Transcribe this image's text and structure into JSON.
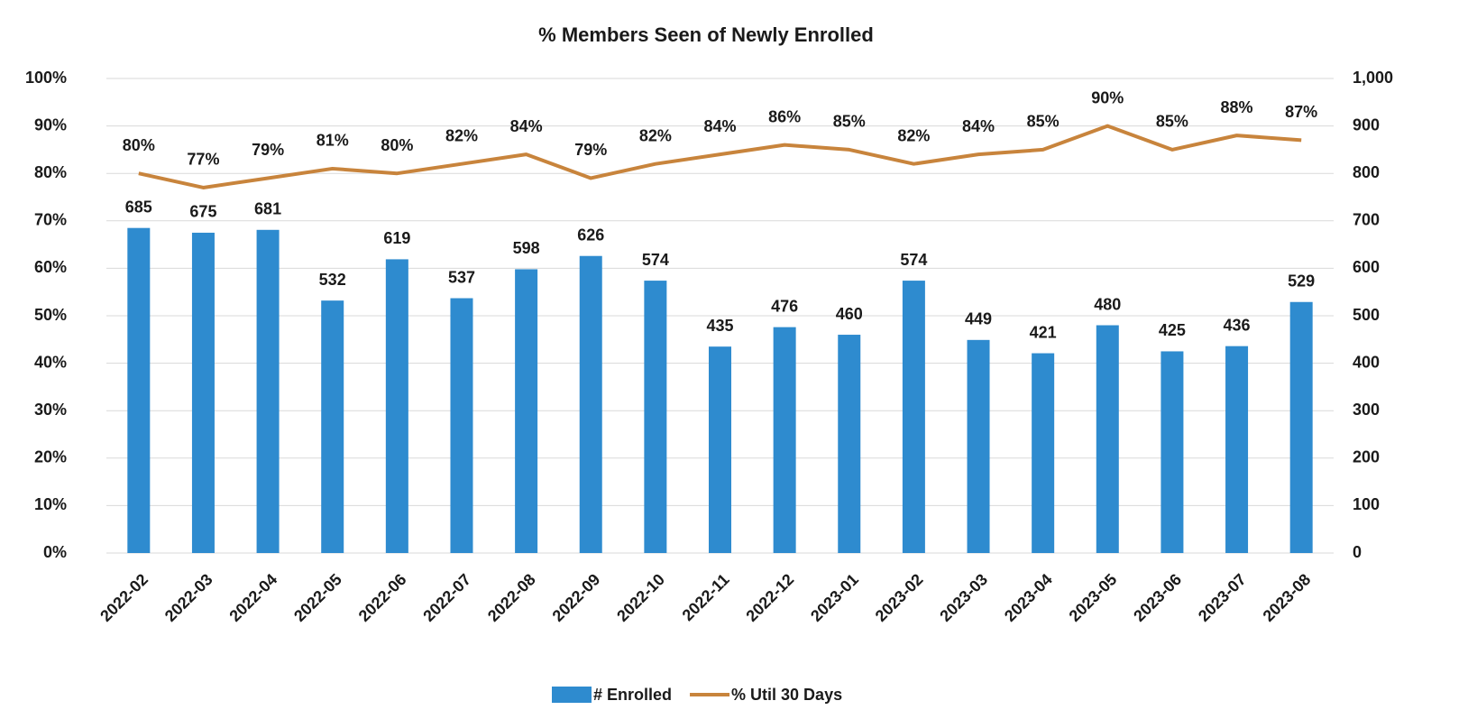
{
  "chart_data": {
    "type": "combo",
    "title": "% Members Seen of Newly Enrolled",
    "categories": [
      "2022-02",
      "2022-03",
      "2022-04",
      "2022-05",
      "2022-06",
      "2022-07",
      "2022-08",
      "2022-09",
      "2022-10",
      "2022-11",
      "2022-12",
      "2023-01",
      "2023-02",
      "2023-03",
      "2023-04",
      "2023-05",
      "2023-06",
      "2023-07",
      "2023-08"
    ],
    "series": [
      {
        "name": "# Enrolled",
        "type": "bar",
        "axis": "y2",
        "color": "#2e8bcf",
        "values": [
          685,
          675,
          681,
          532,
          619,
          537,
          598,
          626,
          574,
          435,
          476,
          460,
          574,
          449,
          421,
          480,
          425,
          436,
          529
        ]
      },
      {
        "name": "% Util 30 Days",
        "type": "line",
        "axis": "y",
        "color": "#c8843c",
        "values": [
          80,
          77,
          79,
          81,
          80,
          82,
          84,
          79,
          82,
          84,
          86,
          85,
          82,
          84,
          85,
          90,
          85,
          88,
          87
        ],
        "value_labels": [
          "80%",
          "77%",
          "79%",
          "81%",
          "80%",
          "82%",
          "84%",
          "79%",
          "82%",
          "84%",
          "86%",
          "85%",
          "82%",
          "84%",
          "85%",
          "90%",
          "85%",
          "88%",
          "87%"
        ]
      }
    ],
    "ylim": [
      0,
      100
    ],
    "yticks": [
      {
        "value": 0,
        "label": "0%"
      },
      {
        "value": 10,
        "label": "10%"
      },
      {
        "value": 20,
        "label": "20%"
      },
      {
        "value": 30,
        "label": "30%"
      },
      {
        "value": 40,
        "label": "40%"
      },
      {
        "value": 50,
        "label": "50%"
      },
      {
        "value": 60,
        "label": "60%"
      },
      {
        "value": 70,
        "label": "70%"
      },
      {
        "value": 80,
        "label": "80%"
      },
      {
        "value": 90,
        "label": "90%"
      },
      {
        "value": 100,
        "label": "100%"
      }
    ],
    "y2lim": [
      0,
      1000
    ],
    "y2ticks": [
      0,
      100,
      200,
      300,
      400,
      500,
      600,
      700,
      800,
      900,
      {
        "value": 1000,
        "label": "1,000"
      }
    ],
    "grid": true,
    "legend": "bottom"
  }
}
